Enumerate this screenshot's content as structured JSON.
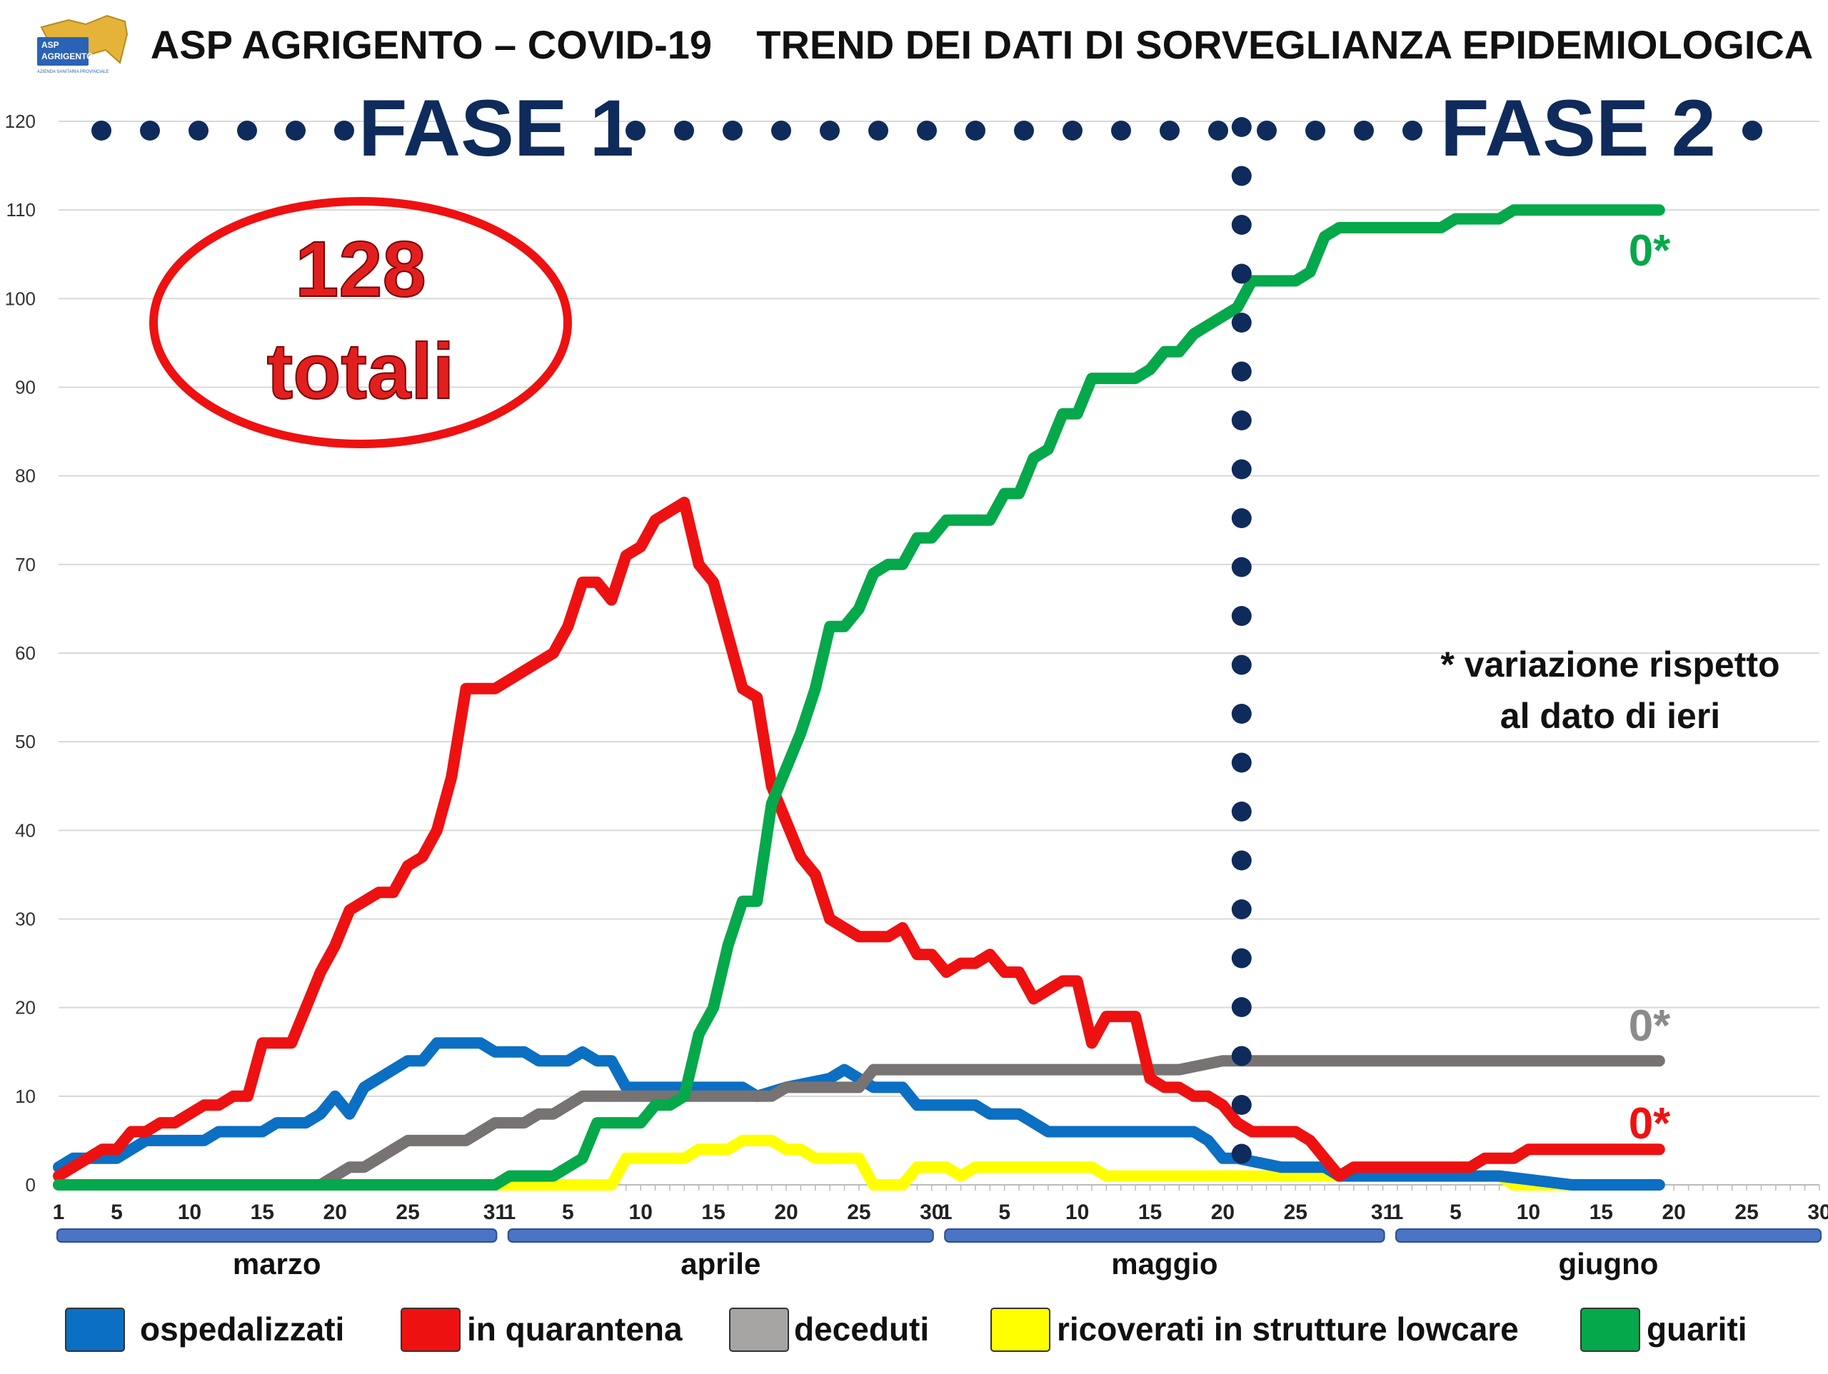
{
  "header": {
    "title": "ASP AGRIGENTO – COVID-19    TREND DEI DATI DI SORVEGLIANZA EPIDEMIOLOGICA",
    "logo_text": [
      "ASP",
      "AGRIGENTO",
      "AZIENDA SANITARIA PROVINCIALE"
    ]
  },
  "phases": {
    "fase1": "FASE 1",
    "fase2": "FASE 2"
  },
  "total": {
    "value": "128",
    "label": "totali"
  },
  "note": {
    "line1": "* variazione rispetto",
    "line2": "al dato di ieri"
  },
  "colors": {
    "ospedalizzati": "#0b6fc3",
    "in_quarantena": "#ee1111",
    "deceduti": "#777373",
    "ricoverati_lowcare": "#ffff00",
    "guariti": "#05a84a",
    "phase_dots": "#0f2b5b"
  },
  "chart_data": {
    "type": "line",
    "ylim": [
      0,
      120
    ],
    "yticks": [
      0,
      10,
      20,
      30,
      40,
      50,
      60,
      70,
      80,
      90,
      100,
      110,
      120
    ],
    "months": [
      {
        "name": "marzo",
        "days": 31,
        "ticks": [
          1,
          5,
          10,
          15,
          20,
          25,
          31
        ]
      },
      {
        "name": "aprile",
        "days": 30,
        "ticks": [
          1,
          5,
          10,
          15,
          20,
          25,
          30
        ]
      },
      {
        "name": "maggio",
        "days": 31,
        "ticks": [
          1,
          5,
          10,
          15,
          20,
          25,
          31
        ]
      },
      {
        "name": "giugno",
        "days": 30,
        "ticks": [
          1,
          5,
          10,
          15,
          20,
          25,
          30
        ]
      }
    ],
    "phase_change_day": 82,
    "series": [
      {
        "name": "ospedalizzati",
        "color": "#0b6fc3",
        "points": [
          [
            1,
            2
          ],
          [
            2,
            3
          ],
          [
            5,
            3
          ],
          [
            6,
            4
          ],
          [
            7,
            5
          ],
          [
            11,
            5
          ],
          [
            12,
            6
          ],
          [
            15,
            6
          ],
          [
            16,
            7
          ],
          [
            18,
            7
          ],
          [
            19,
            8
          ],
          [
            20,
            10
          ],
          [
            21,
            8
          ],
          [
            22,
            11
          ],
          [
            24,
            13
          ],
          [
            25,
            14
          ],
          [
            26,
            14
          ],
          [
            27,
            16
          ],
          [
            30,
            16
          ],
          [
            31,
            15
          ],
          [
            33,
            15
          ],
          [
            34,
            14
          ],
          [
            36,
            14
          ],
          [
            37,
            15
          ],
          [
            38,
            14
          ],
          [
            39,
            14
          ],
          [
            40,
            11
          ],
          [
            45,
            11
          ],
          [
            46,
            11
          ],
          [
            48,
            11
          ],
          [
            49,
            10
          ],
          [
            51,
            11
          ],
          [
            54,
            12
          ],
          [
            55,
            13
          ],
          [
            57,
            11
          ],
          [
            59,
            11
          ],
          [
            60,
            9
          ],
          [
            64,
            9
          ],
          [
            65,
            8
          ],
          [
            67,
            8
          ],
          [
            68,
            7
          ],
          [
            69,
            6
          ],
          [
            74,
            6
          ],
          [
            79,
            6
          ],
          [
            80,
            5
          ],
          [
            81,
            3
          ],
          [
            82,
            3
          ],
          [
            85,
            2
          ],
          [
            88,
            2
          ],
          [
            89,
            1
          ],
          [
            92,
            1
          ],
          [
            100,
            1
          ],
          [
            105,
            0
          ],
          [
            111,
            0
          ]
        ]
      },
      {
        "name": "in quarantena",
        "color": "#ee1111",
        "points": [
          [
            1,
            1
          ],
          [
            2,
            2
          ],
          [
            3,
            3
          ],
          [
            4,
            4
          ],
          [
            5,
            4
          ],
          [
            6,
            6
          ],
          [
            7,
            6
          ],
          [
            8,
            7
          ],
          [
            9,
            7
          ],
          [
            10,
            8
          ],
          [
            11,
            9
          ],
          [
            12,
            9
          ],
          [
            13,
            10
          ],
          [
            14,
            10
          ],
          [
            15,
            16
          ],
          [
            16,
            16
          ],
          [
            17,
            16
          ],
          [
            18,
            20
          ],
          [
            19,
            24
          ],
          [
            20,
            27
          ],
          [
            21,
            31
          ],
          [
            22,
            32
          ],
          [
            23,
            33
          ],
          [
            24,
            33
          ],
          [
            25,
            36
          ],
          [
            26,
            37
          ],
          [
            27,
            40
          ],
          [
            28,
            46
          ],
          [
            29,
            56
          ],
          [
            30,
            56
          ],
          [
            31,
            56
          ],
          [
            32,
            57
          ],
          [
            33,
            58
          ],
          [
            34,
            59
          ],
          [
            35,
            60
          ],
          [
            36,
            63
          ],
          [
            37,
            68
          ],
          [
            38,
            68
          ],
          [
            39,
            66
          ],
          [
            40,
            71
          ],
          [
            41,
            72
          ],
          [
            42,
            75
          ],
          [
            43,
            76
          ],
          [
            44,
            77
          ],
          [
            45,
            70
          ],
          [
            46,
            68
          ],
          [
            47,
            62
          ],
          [
            48,
            56
          ],
          [
            49,
            55
          ],
          [
            50,
            45
          ],
          [
            51,
            41
          ],
          [
            52,
            37
          ],
          [
            53,
            35
          ],
          [
            54,
            30
          ],
          [
            55,
            29
          ],
          [
            56,
            28
          ],
          [
            57,
            28
          ],
          [
            58,
            28
          ],
          [
            59,
            29
          ],
          [
            60,
            26
          ],
          [
            61,
            26
          ],
          [
            62,
            24
          ],
          [
            63,
            25
          ],
          [
            64,
            25
          ],
          [
            65,
            26
          ],
          [
            66,
            24
          ],
          [
            67,
            24
          ],
          [
            68,
            21
          ],
          [
            69,
            22
          ],
          [
            70,
            23
          ],
          [
            71,
            23
          ],
          [
            72,
            16
          ],
          [
            73,
            19
          ],
          [
            74,
            19
          ],
          [
            75,
            19
          ],
          [
            76,
            12
          ],
          [
            77,
            11
          ],
          [
            78,
            11
          ],
          [
            79,
            10
          ],
          [
            80,
            10
          ],
          [
            81,
            9
          ],
          [
            82,
            7
          ],
          [
            83,
            6
          ],
          [
            84,
            6
          ],
          [
            86,
            6
          ],
          [
            87,
            5
          ],
          [
            88,
            3
          ],
          [
            89,
            1
          ],
          [
            90,
            2
          ],
          [
            91,
            2
          ],
          [
            98,
            2
          ],
          [
            99,
            3
          ],
          [
            101,
            3
          ],
          [
            102,
            4
          ],
          [
            111,
            4
          ]
        ]
      },
      {
        "name": "deceduti",
        "color": "#777373",
        "points": [
          [
            1,
            0
          ],
          [
            19,
            0
          ],
          [
            20,
            1
          ],
          [
            21,
            2
          ],
          [
            22,
            2
          ],
          [
            23,
            3
          ],
          [
            24,
            4
          ],
          [
            25,
            5
          ],
          [
            26,
            5
          ],
          [
            27,
            5
          ],
          [
            28,
            5
          ],
          [
            29,
            5
          ],
          [
            30,
            6
          ],
          [
            31,
            7
          ],
          [
            33,
            7
          ],
          [
            34,
            8
          ],
          [
            35,
            8
          ],
          [
            36,
            9
          ],
          [
            37,
            10
          ],
          [
            40,
            10
          ],
          [
            45,
            10
          ],
          [
            49,
            10
          ],
          [
            50,
            10
          ],
          [
            51,
            11
          ],
          [
            56,
            11
          ],
          [
            57,
            13
          ],
          [
            78,
            13
          ],
          [
            81,
            14
          ],
          [
            111,
            14
          ]
        ]
      },
      {
        "name": "ricoverati in strutture lowcare",
        "color": "#ffff00",
        "points": [
          [
            1,
            0
          ],
          [
            38,
            0
          ],
          [
            39,
            0
          ],
          [
            40,
            3
          ],
          [
            42,
            3
          ],
          [
            44,
            3
          ],
          [
            45,
            4
          ],
          [
            47,
            4
          ],
          [
            48,
            5
          ],
          [
            50,
            5
          ],
          [
            51,
            4
          ],
          [
            52,
            4
          ],
          [
            53,
            3
          ],
          [
            56,
            3
          ],
          [
            57,
            0
          ],
          [
            59,
            0
          ],
          [
            60,
            2
          ],
          [
            62,
            2
          ],
          [
            63,
            1
          ],
          [
            64,
            2
          ],
          [
            72,
            2
          ],
          [
            73,
            1
          ],
          [
            92,
            1
          ],
          [
            100,
            1
          ],
          [
            101,
            0
          ],
          [
            111,
            0
          ]
        ]
      },
      {
        "name": "guariti",
        "color": "#05a84a",
        "points": [
          [
            1,
            0
          ],
          [
            31,
            0
          ],
          [
            32,
            1
          ],
          [
            35,
            1
          ],
          [
            36,
            2
          ],
          [
            37,
            3
          ],
          [
            38,
            7
          ],
          [
            41,
            7
          ],
          [
            42,
            9
          ],
          [
            43,
            9
          ],
          [
            44,
            10
          ],
          [
            45,
            17
          ],
          [
            46,
            20
          ],
          [
            47,
            27
          ],
          [
            48,
            32
          ],
          [
            49,
            32
          ],
          [
            50,
            43
          ],
          [
            51,
            47
          ],
          [
            52,
            51
          ],
          [
            53,
            56
          ],
          [
            54,
            63
          ],
          [
            55,
            63
          ],
          [
            56,
            65
          ],
          [
            57,
            69
          ],
          [
            58,
            70
          ],
          [
            59,
            70
          ],
          [
            60,
            73
          ],
          [
            61,
            73
          ],
          [
            62,
            75
          ],
          [
            63,
            75
          ],
          [
            64,
            75
          ],
          [
            65,
            75
          ],
          [
            66,
            78
          ],
          [
            67,
            78
          ],
          [
            68,
            82
          ],
          [
            69,
            83
          ],
          [
            70,
            87
          ],
          [
            71,
            87
          ],
          [
            72,
            91
          ],
          [
            73,
            91
          ],
          [
            74,
            91
          ],
          [
            75,
            91
          ],
          [
            76,
            92
          ],
          [
            77,
            94
          ],
          [
            78,
            94
          ],
          [
            79,
            96
          ],
          [
            80,
            97
          ],
          [
            81,
            98
          ],
          [
            82,
            99
          ],
          [
            83,
            102
          ],
          [
            84,
            102
          ],
          [
            86,
            102
          ],
          [
            87,
            103
          ],
          [
            88,
            107
          ],
          [
            89,
            108
          ],
          [
            96,
            108
          ],
          [
            97,
            109
          ],
          [
            98,
            109
          ],
          [
            100,
            109
          ],
          [
            101,
            110
          ],
          [
            111,
            110
          ]
        ]
      }
    ],
    "variations": [
      {
        "series": "guariti",
        "label": "0*"
      },
      {
        "series": "deceduti",
        "label": "0*"
      },
      {
        "series": "in quarantena",
        "label": "0*"
      }
    ],
    "legend": [
      {
        "label": "ospedalizzati",
        "color": "#0b6fc3"
      },
      {
        "label": "in quarantena",
        "color": "#ee1111"
      },
      {
        "label": "deceduti",
        "color": "#a7a4a4"
      },
      {
        "label": "ricoverati in strutture lowcare",
        "color": "#ffff00"
      },
      {
        "label": "guariti",
        "color": "#05a84a"
      }
    ]
  }
}
